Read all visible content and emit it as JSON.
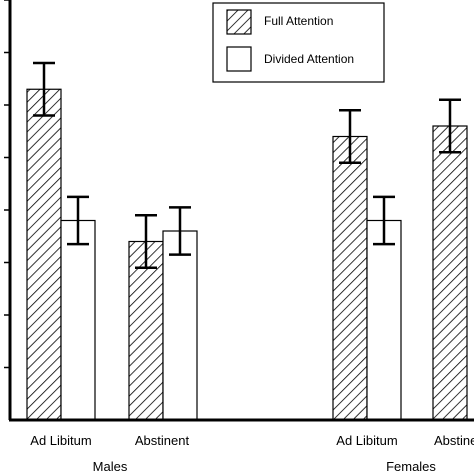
{
  "colors": {
    "stroke": "#000000",
    "background": "#ffffff",
    "full_fill": "hatched",
    "divided_fill": "#ffffff"
  },
  "chart_data": {
    "type": "bar",
    "title": "",
    "xlabel": "",
    "ylabel": "",
    "ylim": [
      0,
      8
    ],
    "grid": false,
    "legend": {
      "placement": "top-right",
      "entries": [
        "Full Attention",
        "Divided Attention"
      ]
    },
    "categories": [
      "Ad Libitum",
      "Abstinent",
      "Ad Libitum",
      "Abstinent"
    ],
    "groups": [
      "Males",
      "Females"
    ],
    "series": [
      {
        "name": "Full Attention",
        "pattern": "hatched",
        "values": [
          6.3,
          3.4,
          5.4,
          5.6
        ],
        "errors": [
          0.5,
          0.5,
          0.5,
          0.5
        ]
      },
      {
        "name": "Divided Attention",
        "pattern": "white",
        "values": [
          3.8,
          3.6,
          3.8,
          null
        ],
        "errors": [
          0.45,
          0.45,
          0.45,
          null
        ]
      }
    ]
  }
}
